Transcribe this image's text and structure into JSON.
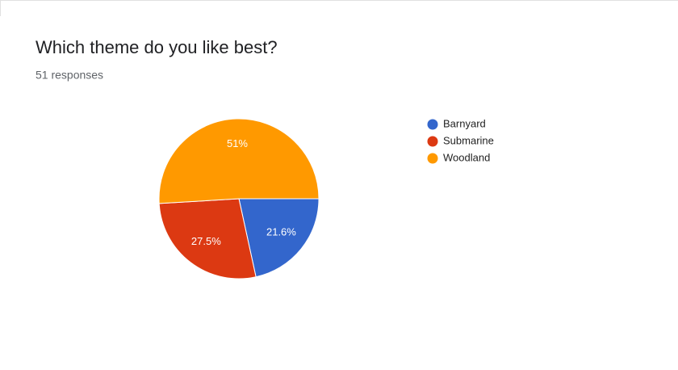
{
  "chart_data": {
    "type": "pie",
    "title": "Which theme do you like best?",
    "subtitle": "51 responses",
    "categories": [
      "Barnyard",
      "Submarine",
      "Woodland"
    ],
    "values": [
      21.6,
      27.5,
      51
    ],
    "value_labels": [
      "21.6%",
      "27.5%",
      "51%"
    ],
    "colors": [
      "#3366cc",
      "#dc3912",
      "#ff9900"
    ]
  }
}
